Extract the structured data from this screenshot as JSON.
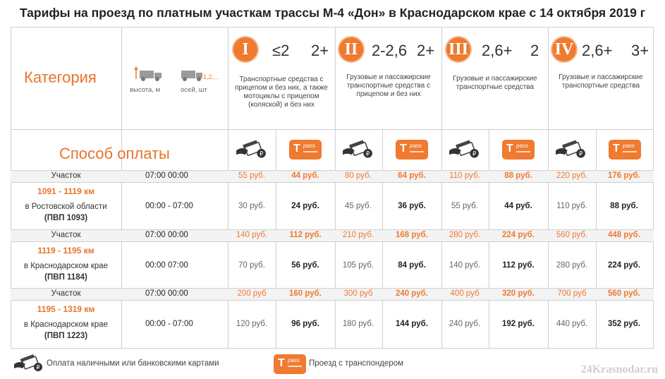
{
  "title": "Тарифы на проезд по платным участкам трассы М-4 «Дон» в Краснодарском крае с 14 октября 2019 г",
  "header": {
    "category_label": "Категория",
    "payment_label": "Способ оплаты",
    "height_label": "высота, м",
    "axles_label": "осей, шт",
    "axles_numbers": "1,2,...",
    "height_arrow": "↑",
    "categories": [
      {
        "numeral": "I",
        "value1": "≤2",
        "value2": "2+",
        "desc": "Транспортные средства с прицепом и без них, а также мотоциклы с прицепом (коляской) и без них"
      },
      {
        "numeral": "II",
        "value1": "2-2,6",
        "value2": "2+",
        "desc": "Грузовые и пассажирские транспортные средства с прицепом и без них"
      },
      {
        "numeral": "III",
        "value1": "2,6+",
        "value2": "2",
        "desc": "Грузовые и пассажирские транспортные средства"
      },
      {
        "numeral": "IV",
        "value1": "2,6+",
        "value2": "3+",
        "desc": "Грузовые и пассажирские транспортные средства"
      }
    ],
    "pass_text": "pass",
    "pass_letter": "T"
  },
  "sections": [
    {
      "label": "Участок",
      "km": "1091 - 1119 км",
      "region": "в Ростовской области",
      "pvp": "(ПВП 1093)",
      "rows": [
        {
          "time": "07:00 00:00",
          "prices": [
            "55 руб.",
            "44 руб.",
            "80 руб.",
            "64 руб.",
            "110 руб.",
            "88 руб.",
            "220 руб.",
            "176 руб."
          ]
        },
        {
          "time": "00:00 - 07:00",
          "prices": [
            "30 руб.",
            "24 руб.",
            "45 руб.",
            "36 руб.",
            "55 руб.",
            "44 руб.",
            "110 руб.",
            "88 руб."
          ]
        }
      ]
    },
    {
      "label": "Участок",
      "km": "1119 - 1195 км",
      "region": "в Краснодарском крае",
      "pvp": "(ПВП 1184)",
      "rows": [
        {
          "time": "07:00 00:00",
          "prices": [
            "140 руб.",
            "112 руб.",
            "210 руб.",
            "168 руб.",
            "280 руб.",
            "224 руб.",
            "560 руб.",
            "448 руб."
          ]
        },
        {
          "time": "00:00 07:00",
          "prices": [
            "70 руб.",
            "56 руб.",
            "105 руб.",
            "84 руб.",
            "140 руб.",
            "112 руб.",
            "280 руб.",
            "224 руб."
          ]
        }
      ]
    },
    {
      "label": "Участок",
      "km": "1195 - 1319 км",
      "region": "в Краснодарском крае",
      "pvp": "(ПВП 1223)",
      "rows": [
        {
          "time": "07:00 00:00",
          "prices": [
            "200 руб",
            "160 руб.",
            "300 руб",
            "240 руб.",
            "400 руб",
            "320 руб.",
            "700 руб",
            "560 руб."
          ]
        },
        {
          "time": "00:00 - 07:00",
          "prices": [
            "120 руб.",
            "96 руб.",
            "180 руб.",
            "144 руб.",
            "240 руб.",
            "192 руб.",
            "440 руб.",
            "352 руб."
          ]
        }
      ]
    }
  ],
  "legend": {
    "cash": "Оплата наличными или банковскими картами",
    "transponder": "Проезд с транспондером"
  },
  "watermark": "24Krasnodar.ru",
  "colors": {
    "accent": "#ef7a30",
    "grid": "#cfcfcf"
  }
}
